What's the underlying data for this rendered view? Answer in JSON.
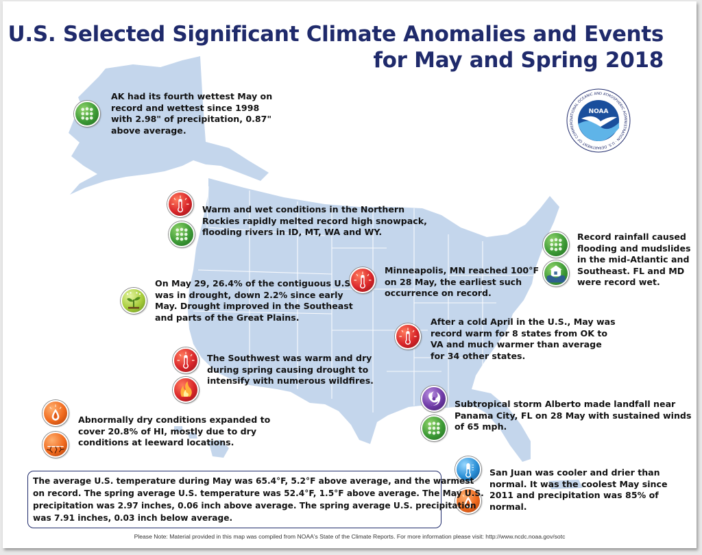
{
  "title": {
    "line1": "U.S. Selected Significant Climate Anomalies and Events",
    "line2": "for May and Spring 2018"
  },
  "logo": {
    "name": "NOAA",
    "ring_text": "NATIONAL OCEANIC AND ATMOSPHERIC ADMINISTRATION · U.S. DEPARTMENT OF COMMERCE"
  },
  "annotations": [
    {
      "id": "alaska",
      "lines": [
        "AK had its fourth wettest May on",
        "record and wettest since 1998",
        "with 2.98\" of precipitation, 0.87\"",
        "above average."
      ],
      "icons": [
        "rain-icon"
      ]
    },
    {
      "id": "northern-rockies",
      "lines": [
        "Warm and wet conditions in the Northern",
        "Rockies rapidly melted record high snowpack,",
        "flooding rivers in ID, MT, WA and WY."
      ],
      "icons": [
        "warm-thermometer-icon",
        "rain-icon"
      ]
    },
    {
      "id": "drought",
      "lines": [
        "On May 29, 26.4% of the contiguous U.S.",
        "was in drought, down 2.2% since early",
        "May. Drought improved in the Southeast",
        "and parts of the Great Plains."
      ],
      "icons": [
        "drought-improvement-icon"
      ]
    },
    {
      "id": "southwest",
      "lines": [
        "The Southwest was warm and dry",
        "during spring causing drought to",
        "intensify with numerous wildfires."
      ],
      "icons": [
        "warm-thermometer-icon",
        "wildfire-icon"
      ]
    },
    {
      "id": "hawaii",
      "lines": [
        "Abnormally dry conditions expanded to",
        "cover 20.8% of HI, mostly due to dry",
        "conditions at leeward locations."
      ],
      "icons": [
        "dry-droplet-icon",
        "cracked-ground-icon"
      ]
    },
    {
      "id": "minneapolis",
      "lines": [
        "Minneapolis, MN reached 100°F",
        "on 28 May, the earliest such",
        "occurrence on record."
      ],
      "icons": [
        "warm-thermometer-icon"
      ]
    },
    {
      "id": "mid-atlantic",
      "lines": [
        "Record rainfall caused",
        "flooding and mudslides",
        "in the mid-Atlantic and",
        "Southeast. FL and MD",
        "were record wet."
      ],
      "icons": [
        "rain-icon",
        "flooding-icon"
      ]
    },
    {
      "id": "record-warm",
      "lines": [
        "After a cold April in the U.S., May was",
        "record warm for 8 states from OK to",
        "VA and much warmer than average",
        "for 34 other states."
      ],
      "icons": [
        "warm-thermometer-icon"
      ]
    },
    {
      "id": "alberto",
      "lines": [
        "Subtropical storm Alberto made landfall near",
        "Panama City, FL on 28 May with sustained winds",
        "of 65 mph."
      ],
      "icons": [
        "tropical-storm-icon",
        "rain-icon"
      ]
    },
    {
      "id": "san-juan",
      "lines": [
        "San Juan was cooler and drier than",
        "normal. It was the coolest May since",
        "2011 and  precipitation was 85% of",
        "normal."
      ],
      "icons": [
        "cool-thermometer-icon",
        "dry-droplet-icon"
      ]
    }
  ],
  "summary": {
    "lines": [
      "The average U.S. temperature during May was 65.4°F, 5.2°F above average, and the warmest",
      "on record. The spring average U.S. temperature was 52.4°F, 1.5°F above average. The May U.S.",
      "precipitation was 2.97 inches, 0.06 inch above average. The spring average U.S. precipitation",
      "was 7.91 inches, 0.03 inch below average."
    ]
  },
  "footer_note": "Please Note: Material provided in this map was compiled from NOAA's State of the Climate Reports. For more information please visit: http://www.ncdc.noaa.gov/sotc",
  "colors": {
    "title": "#1f2a6b",
    "map_fill": "#c4d6ec",
    "state_lines": "#ffffff",
    "rain_icon": "#3d9a36",
    "warm_icon": "#d9262a",
    "dry_icon": "#f06a1e",
    "storm_icon": "#6f3aa6",
    "cool_icon": "#2a8fd6"
  }
}
